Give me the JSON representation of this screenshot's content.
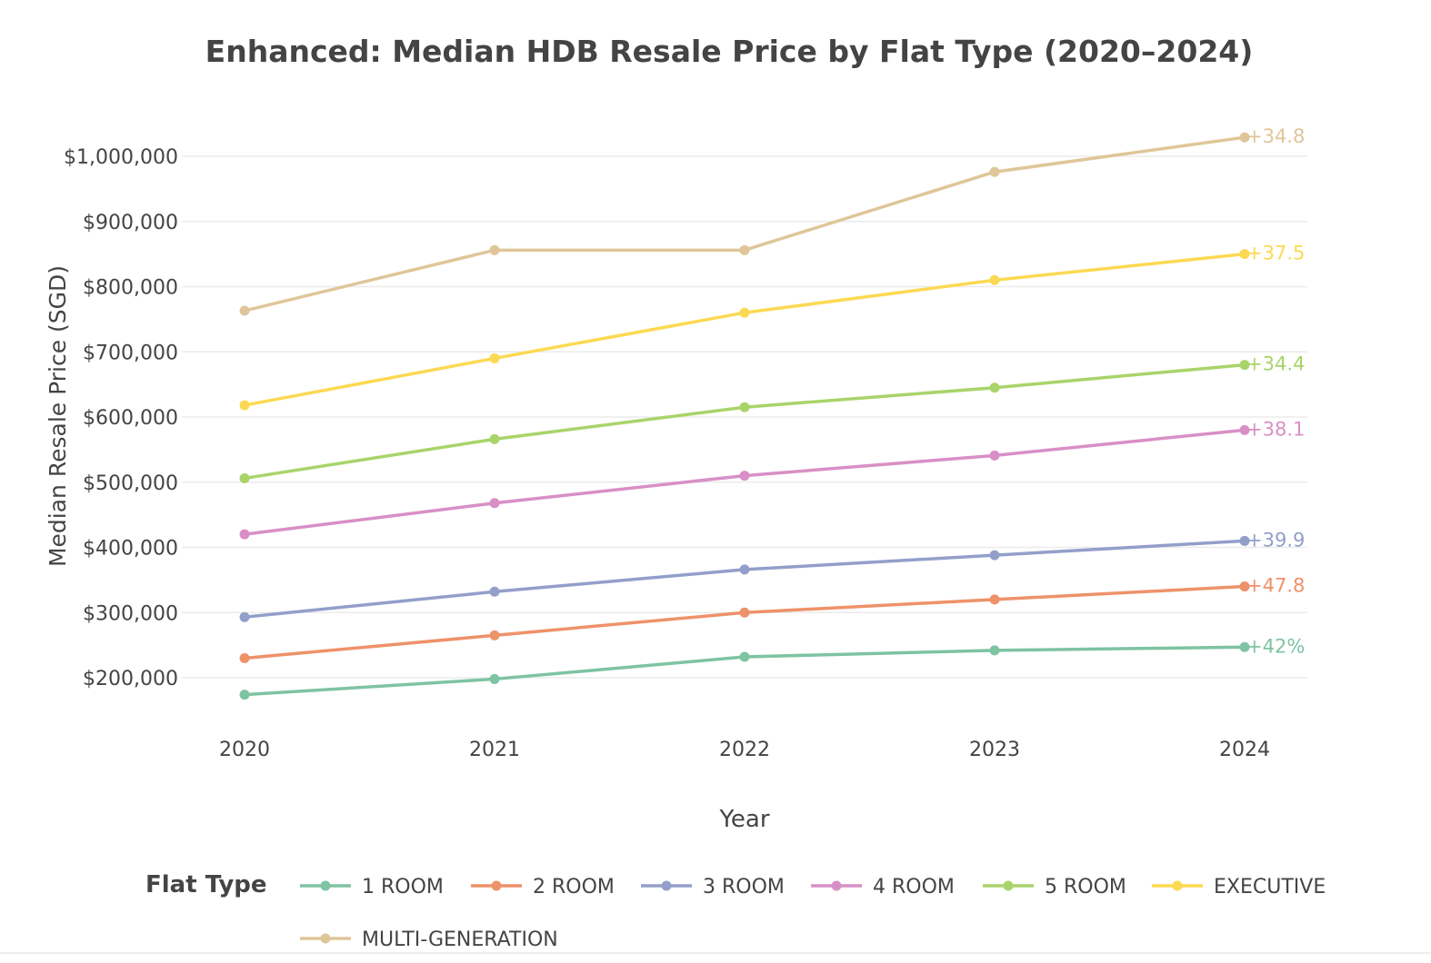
{
  "chart_data": {
    "type": "line",
    "title": "Enhanced: Median HDB Resale Price by Flat Type (2020–2024)",
    "xlabel": "Year",
    "ylabel": "Median Resale Price (SGD)",
    "x": [
      2020,
      2021,
      2022,
      2023,
      2024
    ],
    "x_tick_labels": [
      "2020",
      "2021",
      "2022",
      "2023",
      "2024"
    ],
    "y_ticks": [
      200000,
      300000,
      400000,
      500000,
      600000,
      700000,
      800000,
      900000,
      1000000
    ],
    "y_tick_labels": [
      "$200,000",
      "$300,000",
      "$400,000",
      "$500,000",
      "$600,000",
      "$700,000",
      "$800,000",
      "$900,000",
      "$1,000,000"
    ],
    "ylim": [
      145000,
      1055000
    ],
    "grid": true,
    "legend": {
      "title": "Flat Type",
      "position": "bottom"
    },
    "series": [
      {
        "name": "1 ROOM",
        "color": "#7ec3a2",
        "values": [
          174000,
          198000,
          232000,
          242000,
          247000
        ],
        "end_label": "+42%"
      },
      {
        "name": "2 ROOM",
        "color": "#ee926a",
        "values": [
          230000,
          265000,
          300000,
          320000,
          340000
        ],
        "end_label": "+47.8"
      },
      {
        "name": "3 ROOM",
        "color": "#939fca",
        "values": [
          293000,
          332000,
          366000,
          388000,
          410000
        ],
        "end_label": "+39.9"
      },
      {
        "name": "4 ROOM",
        "color": "#d88fc6",
        "values": [
          420000,
          468000,
          510000,
          541000,
          580000
        ],
        "end_label": "+38.1"
      },
      {
        "name": "5 ROOM",
        "color": "#a9d46a",
        "values": [
          506000,
          566000,
          615000,
          645000,
          680000
        ],
        "end_label": "+34.4"
      },
      {
        "name": "EXECUTIVE",
        "color": "#fcd952",
        "values": [
          618000,
          690000,
          760000,
          810000,
          850000
        ],
        "end_label": "+37.5"
      },
      {
        "name": "MULTI-GENERATION",
        "color": "#dfc699",
        "values": [
          763000,
          856000,
          856000,
          976000,
          1029000
        ],
        "end_label": "+34.8"
      }
    ]
  }
}
